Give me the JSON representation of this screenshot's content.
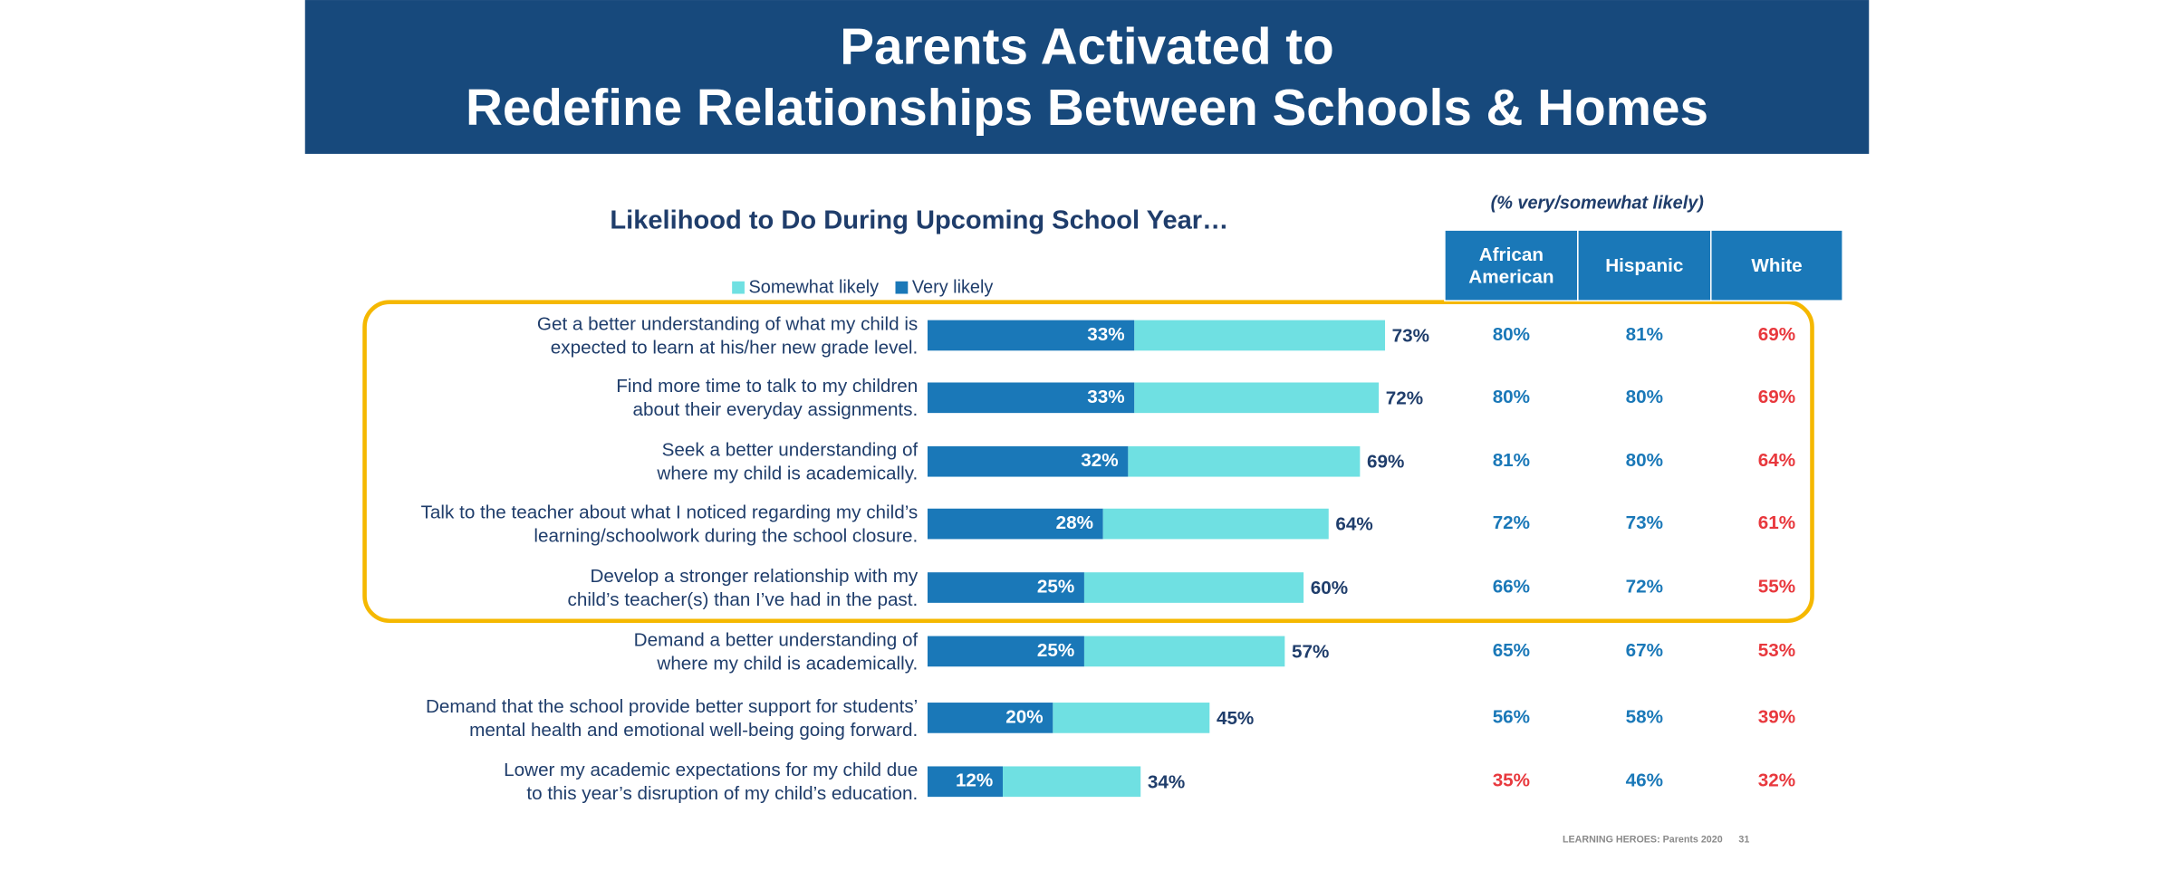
{
  "header": {
    "title": "Parents Activated to\nRedefine Relationships Between Schools & Homes"
  },
  "chart_data": {
    "type": "bar",
    "orientation": "horizontal",
    "stacked": true,
    "title": "Likelihood to Do During Upcoming School Year…",
    "categories": [
      "Get a better understanding of what my child is\nexpected to learn at his/her new grade level.",
      "Find more time to talk to my children\nabout their everyday assignments.",
      "Seek a better understanding of\nwhere my child is academically.",
      "Talk to the teacher about what I noticed regarding my child’s\nlearning/schoolwork during the school closure.",
      "Develop a stronger relationship with my\nchild’s teacher(s) than I’ve had in the past.",
      "Demand a better understanding of\nwhere my child is academically.",
      "Demand that the school provide better support for students’\nmental health and emotional well-being going forward.",
      "Lower my academic expectations for my child due\nto this year’s disruption of my child’s education."
    ],
    "series": [
      {
        "name": "Very likely",
        "color": "#1a78b8",
        "values": [
          33,
          33,
          32,
          28,
          25,
          25,
          20,
          12
        ],
        "value_labels": [
          "33%",
          "33%",
          "32%",
          "28%",
          "25%",
          "25%",
          "20%",
          "12%"
        ]
      },
      {
        "name": "Somewhat likely",
        "color": "#6fe0e2",
        "values": [
          40,
          39,
          37,
          36,
          35,
          32,
          25,
          22
        ]
      }
    ],
    "total_labels": [
      "73%",
      "72%",
      "69%",
      "64%",
      "60%",
      "57%",
      "45%",
      "34%"
    ],
    "xlim": [
      0,
      100
    ]
  },
  "table": {
    "note": "(% very/somewhat likely)",
    "header_color": "#1a78b8",
    "columns": [
      "African\nAmerican",
      "Hispanic",
      "White"
    ],
    "rows": [
      [
        {
          "text": "80%",
          "color": "#1a78b8"
        },
        {
          "text": "81%",
          "color": "#1a78b8"
        },
        {
          "text": "69%",
          "color": "#e8383d"
        }
      ],
      [
        {
          "text": "80%",
          "color": "#1a78b8"
        },
        {
          "text": "80%",
          "color": "#1a78b8"
        },
        {
          "text": "69%",
          "color": "#e8383d"
        }
      ],
      [
        {
          "text": "81%",
          "color": "#1a78b8"
        },
        {
          "text": "80%",
          "color": "#1a78b8"
        },
        {
          "text": "64%",
          "color": "#e8383d"
        }
      ],
      [
        {
          "text": "72%",
          "color": "#1a78b8"
        },
        {
          "text": "73%",
          "color": "#1a78b8"
        },
        {
          "text": "61%",
          "color": "#e8383d"
        }
      ],
      [
        {
          "text": "66%",
          "color": "#1a78b8"
        },
        {
          "text": "72%",
          "color": "#1a78b8"
        },
        {
          "text": "55%",
          "color": "#e8383d"
        }
      ],
      [
        {
          "text": "65%",
          "color": "#1a78b8"
        },
        {
          "text": "67%",
          "color": "#1a78b8"
        },
        {
          "text": "53%",
          "color": "#e8383d"
        }
      ],
      [
        {
          "text": "56%",
          "color": "#1a78b8"
        },
        {
          "text": "58%",
          "color": "#1a78b8"
        },
        {
          "text": "39%",
          "color": "#e8383d"
        }
      ],
      [
        {
          "text": "35%",
          "color": "#e8383d"
        },
        {
          "text": "46%",
          "color": "#1a78b8"
        },
        {
          "text": "32%",
          "color": "#e8383d"
        }
      ]
    ]
  },
  "footer": {
    "source": "LEARNING HEROES: Parents 2020",
    "page": "31"
  }
}
